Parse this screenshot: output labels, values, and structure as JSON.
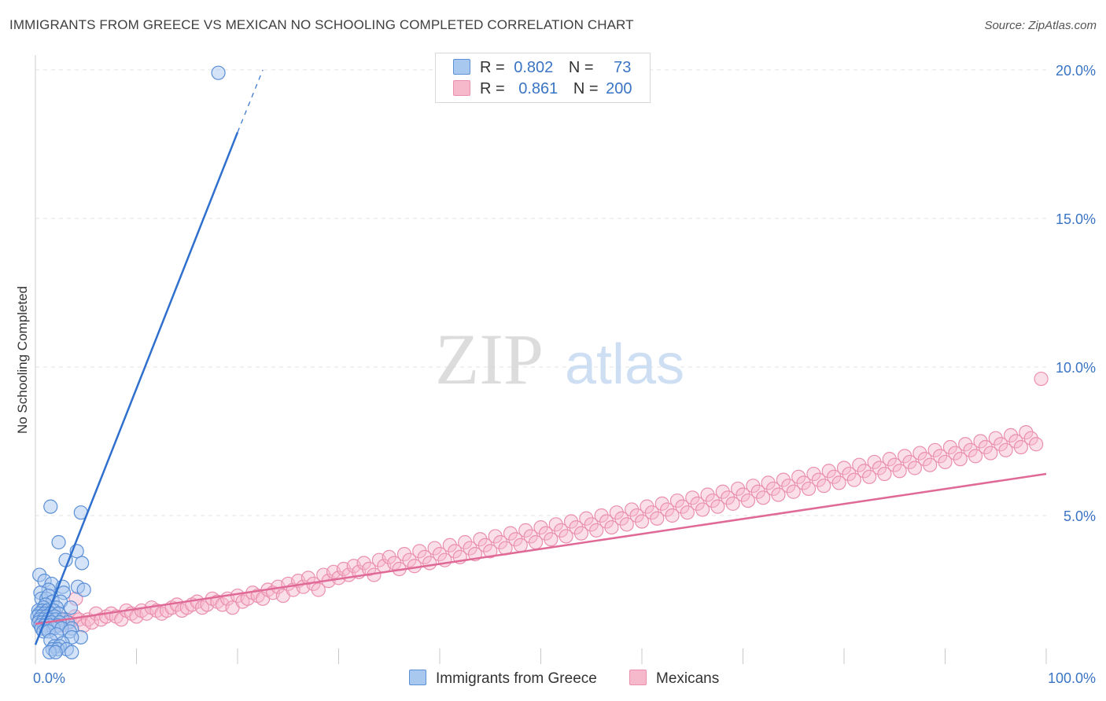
{
  "header": {
    "title": "IMMIGRANTS FROM GREECE VS MEXICAN NO SCHOOLING COMPLETED CORRELATION CHART",
    "source": "Source: ZipAtlas.com"
  },
  "legend": {
    "rows": [
      {
        "r_label": "R =",
        "r_value": "0.802",
        "n_label": "N =",
        "n_value": "73"
      },
      {
        "r_label": "R =",
        "r_value": "0.861",
        "n_label": "N =",
        "n_value": "200"
      }
    ]
  },
  "bottom_legend": {
    "greece": "Immigrants from Greece",
    "mexicans": "Mexicans"
  },
  "watermark": {
    "zip": "ZIP",
    "atlas": "atlas"
  },
  "colors": {
    "greece_fill": "#a9c8f0",
    "greece_stroke": "#5b8fd6",
    "greece_line": "#2f6fcd",
    "mexicans_fill": "#f6b9cc",
    "mexicans_stroke": "#ea8fad",
    "mexicans_line": "#e06a96",
    "grid": "#e3e3e3",
    "tick_text": "#3a74c4"
  },
  "chart_data": {
    "type": "scatter",
    "title": "IMMIGRANTS FROM GREECE VS MEXICAN NO SCHOOLING COMPLETED CORRELATION CHART",
    "xlabel": "",
    "ylabel": "No Schooling Completed",
    "xlim": [
      0,
      100
    ],
    "ylim": [
      0,
      20.5
    ],
    "x_tick_labels": [
      "0.0%",
      "100.0%"
    ],
    "y_ticks": [
      5,
      10,
      15,
      20
    ],
    "y_tick_labels": [
      "5.0%",
      "10.0%",
      "15.0%",
      "20.0%"
    ],
    "grid": true,
    "legend_position": "top-center",
    "series": [
      {
        "name": "Immigrants from Greece",
        "r": 0.802,
        "n": 73,
        "trend": {
          "x0": 0,
          "y0": 0.65,
          "x1": 20,
          "y1": 17.9,
          "dash_to_x": 22.5,
          "dash_to_y": 20.0
        },
        "points": [
          [
            18.1,
            19.9
          ],
          [
            1.5,
            5.3
          ],
          [
            4.5,
            5.1
          ],
          [
            2.3,
            4.1
          ],
          [
            4.1,
            3.8
          ],
          [
            3.0,
            3.5
          ],
          [
            4.6,
            3.4
          ],
          [
            0.4,
            3.0
          ],
          [
            0.9,
            2.8
          ],
          [
            1.6,
            2.7
          ],
          [
            4.2,
            2.6
          ],
          [
            2.7,
            2.6
          ],
          [
            1.3,
            2.5
          ],
          [
            0.5,
            2.4
          ],
          [
            2.8,
            2.4
          ],
          [
            4.8,
            2.5
          ],
          [
            0.6,
            2.2
          ],
          [
            1.1,
            2.2
          ],
          [
            1.3,
            2.3
          ],
          [
            1.7,
            2.1
          ],
          [
            2.5,
            2.1
          ],
          [
            1.0,
            2.0
          ],
          [
            0.8,
            1.9
          ],
          [
            2.1,
            1.9
          ],
          [
            0.3,
            1.8
          ],
          [
            0.7,
            1.8
          ],
          [
            1.2,
            1.8
          ],
          [
            1.8,
            1.8
          ],
          [
            3.5,
            1.9
          ],
          [
            0.4,
            1.7
          ],
          [
            0.9,
            1.7
          ],
          [
            1.5,
            1.7
          ],
          [
            2.3,
            1.7
          ],
          [
            0.2,
            1.6
          ],
          [
            0.6,
            1.6
          ],
          [
            1.1,
            1.6
          ],
          [
            1.9,
            1.6
          ],
          [
            0.4,
            1.5
          ],
          [
            0.8,
            1.5
          ],
          [
            1.3,
            1.5
          ],
          [
            2.0,
            1.5
          ],
          [
            2.7,
            1.5
          ],
          [
            3.2,
            1.4
          ],
          [
            0.3,
            1.4
          ],
          [
            0.7,
            1.4
          ],
          [
            1.1,
            1.4
          ],
          [
            1.6,
            1.4
          ],
          [
            2.4,
            1.4
          ],
          [
            0.5,
            1.3
          ],
          [
            0.9,
            1.3
          ],
          [
            1.4,
            1.3
          ],
          [
            2.2,
            1.3
          ],
          [
            3.6,
            1.2
          ],
          [
            0.6,
            1.2
          ],
          [
            1.1,
            1.2
          ],
          [
            1.8,
            1.2
          ],
          [
            2.6,
            1.2
          ],
          [
            3.4,
            1.1
          ],
          [
            0.8,
            1.1
          ],
          [
            1.3,
            1.1
          ],
          [
            2.1,
            1.0
          ],
          [
            4.5,
            0.9
          ],
          [
            3.6,
            0.9
          ],
          [
            1.5,
            0.8
          ],
          [
            2.7,
            0.7
          ],
          [
            1.9,
            0.6
          ],
          [
            2.4,
            0.6
          ],
          [
            1.7,
            0.5
          ],
          [
            2.2,
            0.5
          ],
          [
            3.1,
            0.5
          ],
          [
            1.4,
            0.4
          ],
          [
            2.0,
            0.4
          ],
          [
            3.6,
            0.4
          ]
        ]
      },
      {
        "name": "Mexicans",
        "r": 0.861,
        "n": 200,
        "trend": {
          "x0": 0,
          "y0": 1.35,
          "x1": 100,
          "y1": 6.4
        },
        "points": [
          [
            0.5,
            1.5
          ],
          [
            1.2,
            1.4
          ],
          [
            1.8,
            1.2
          ],
          [
            2.2,
            1.6
          ],
          [
            2.6,
            1.3
          ],
          [
            3.0,
            1.5
          ],
          [
            3.4,
            1.4
          ],
          [
            3.9,
            1.6
          ],
          [
            4.3,
            1.5
          ],
          [
            4.8,
            1.3
          ],
          [
            5.2,
            1.5
          ],
          [
            5.6,
            1.4
          ],
          [
            4.0,
            2.2
          ],
          [
            6.0,
            1.7
          ],
          [
            6.5,
            1.5
          ],
          [
            7.0,
            1.6
          ],
          [
            7.5,
            1.7
          ],
          [
            8.0,
            1.6
          ],
          [
            8.5,
            1.5
          ],
          [
            9.0,
            1.8
          ],
          [
            9.5,
            1.7
          ],
          [
            10.0,
            1.6
          ],
          [
            10.5,
            1.8
          ],
          [
            11.0,
            1.7
          ],
          [
            11.5,
            1.9
          ],
          [
            12.0,
            1.8
          ],
          [
            12.5,
            1.7
          ],
          [
            13.0,
            1.8
          ],
          [
            13.5,
            1.9
          ],
          [
            14.0,
            2.0
          ],
          [
            14.5,
            1.8
          ],
          [
            15.0,
            1.9
          ],
          [
            15.5,
            2.0
          ],
          [
            16.0,
            2.1
          ],
          [
            16.5,
            1.9
          ],
          [
            17.0,
            2.0
          ],
          [
            17.5,
            2.2
          ],
          [
            18.0,
            2.1
          ],
          [
            18.5,
            2.0
          ],
          [
            19.0,
            2.2
          ],
          [
            19.5,
            1.9
          ],
          [
            20.0,
            2.3
          ],
          [
            20.5,
            2.1
          ],
          [
            21.0,
            2.2
          ],
          [
            21.5,
            2.4
          ],
          [
            22.0,
            2.3
          ],
          [
            22.5,
            2.2
          ],
          [
            23.0,
            2.5
          ],
          [
            23.5,
            2.4
          ],
          [
            24.0,
            2.6
          ],
          [
            24.5,
            2.3
          ],
          [
            25.0,
            2.7
          ],
          [
            25.5,
            2.5
          ],
          [
            26.0,
            2.8
          ],
          [
            26.5,
            2.6
          ],
          [
            27.0,
            2.9
          ],
          [
            27.5,
            2.7
          ],
          [
            28.0,
            2.5
          ],
          [
            28.5,
            3.0
          ],
          [
            29.0,
            2.8
          ],
          [
            29.5,
            3.1
          ],
          [
            30.0,
            2.9
          ],
          [
            30.5,
            3.2
          ],
          [
            31.0,
            3.0
          ],
          [
            31.5,
            3.3
          ],
          [
            32.0,
            3.1
          ],
          [
            32.5,
            3.4
          ],
          [
            33.0,
            3.2
          ],
          [
            33.5,
            3.0
          ],
          [
            34.0,
            3.5
          ],
          [
            34.5,
            3.3
          ],
          [
            35.0,
            3.6
          ],
          [
            35.5,
            3.4
          ],
          [
            36.0,
            3.2
          ],
          [
            36.5,
            3.7
          ],
          [
            37.0,
            3.5
          ],
          [
            37.5,
            3.3
          ],
          [
            38.0,
            3.8
          ],
          [
            38.5,
            3.6
          ],
          [
            39.0,
            3.4
          ],
          [
            39.5,
            3.9
          ],
          [
            40.0,
            3.7
          ],
          [
            40.5,
            3.5
          ],
          [
            41.0,
            4.0
          ],
          [
            41.5,
            3.8
          ],
          [
            42.0,
            3.6
          ],
          [
            42.5,
            4.1
          ],
          [
            43.0,
            3.9
          ],
          [
            43.5,
            3.7
          ],
          [
            44.0,
            4.2
          ],
          [
            44.5,
            4.0
          ],
          [
            45.0,
            3.8
          ],
          [
            45.5,
            4.3
          ],
          [
            46.0,
            4.1
          ],
          [
            46.5,
            3.9
          ],
          [
            47.0,
            4.4
          ],
          [
            47.5,
            4.2
          ],
          [
            48.0,
            4.0
          ],
          [
            48.5,
            4.5
          ],
          [
            49.0,
            4.3
          ],
          [
            49.5,
            4.1
          ],
          [
            50.0,
            4.6
          ],
          [
            50.5,
            4.4
          ],
          [
            51.0,
            4.2
          ],
          [
            51.5,
            4.7
          ],
          [
            52.0,
            4.5
          ],
          [
            52.5,
            4.3
          ],
          [
            53.0,
            4.8
          ],
          [
            53.5,
            4.6
          ],
          [
            54.0,
            4.4
          ],
          [
            54.5,
            4.9
          ],
          [
            55.0,
            4.7
          ],
          [
            55.5,
            4.5
          ],
          [
            56.0,
            5.0
          ],
          [
            56.5,
            4.8
          ],
          [
            57.0,
            4.6
          ],
          [
            57.5,
            5.1
          ],
          [
            58.0,
            4.9
          ],
          [
            58.5,
            4.7
          ],
          [
            59.0,
            5.2
          ],
          [
            59.5,
            5.0
          ],
          [
            60.0,
            4.8
          ],
          [
            60.5,
            5.3
          ],
          [
            61.0,
            5.1
          ],
          [
            61.5,
            4.9
          ],
          [
            62.0,
            5.4
          ],
          [
            62.5,
            5.2
          ],
          [
            63.0,
            5.0
          ],
          [
            63.5,
            5.5
          ],
          [
            64.0,
            5.3
          ],
          [
            64.5,
            5.1
          ],
          [
            65.0,
            5.6
          ],
          [
            65.5,
            5.4
          ],
          [
            66.0,
            5.2
          ],
          [
            66.5,
            5.7
          ],
          [
            67.0,
            5.5
          ],
          [
            67.5,
            5.3
          ],
          [
            68.0,
            5.8
          ],
          [
            68.5,
            5.6
          ],
          [
            69.0,
            5.4
          ],
          [
            69.5,
            5.9
          ],
          [
            70.0,
            5.7
          ],
          [
            70.5,
            5.5
          ],
          [
            71.0,
            6.0
          ],
          [
            71.5,
            5.8
          ],
          [
            72.0,
            5.6
          ],
          [
            72.5,
            6.1
          ],
          [
            73.0,
            5.9
          ],
          [
            73.5,
            5.7
          ],
          [
            74.0,
            6.2
          ],
          [
            74.5,
            6.0
          ],
          [
            75.0,
            5.8
          ],
          [
            75.5,
            6.3
          ],
          [
            76.0,
            6.1
          ],
          [
            76.5,
            5.9
          ],
          [
            77.0,
            6.4
          ],
          [
            77.5,
            6.2
          ],
          [
            78.0,
            6.0
          ],
          [
            78.5,
            6.5
          ],
          [
            79.0,
            6.3
          ],
          [
            79.5,
            6.1
          ],
          [
            80.0,
            6.6
          ],
          [
            80.5,
            6.4
          ],
          [
            81.0,
            6.2
          ],
          [
            81.5,
            6.7
          ],
          [
            82.0,
            6.5
          ],
          [
            82.5,
            6.3
          ],
          [
            83.0,
            6.8
          ],
          [
            83.5,
            6.6
          ],
          [
            84.0,
            6.4
          ],
          [
            84.5,
            6.9
          ],
          [
            85.0,
            6.7
          ],
          [
            85.5,
            6.5
          ],
          [
            86.0,
            7.0
          ],
          [
            86.5,
            6.8
          ],
          [
            87.0,
            6.6
          ],
          [
            87.5,
            7.1
          ],
          [
            88.0,
            6.9
          ],
          [
            88.5,
            6.7
          ],
          [
            89.0,
            7.2
          ],
          [
            89.5,
            7.0
          ],
          [
            90.0,
            6.8
          ],
          [
            90.5,
            7.3
          ],
          [
            91.0,
            7.1
          ],
          [
            91.5,
            6.9
          ],
          [
            92.0,
            7.4
          ],
          [
            92.5,
            7.2
          ],
          [
            93.0,
            7.0
          ],
          [
            93.5,
            7.5
          ],
          [
            94.0,
            7.3
          ],
          [
            94.5,
            7.1
          ],
          [
            95.0,
            7.6
          ],
          [
            95.5,
            7.4
          ],
          [
            96.0,
            7.2
          ],
          [
            96.5,
            7.7
          ],
          [
            97.0,
            7.5
          ],
          [
            97.5,
            7.3
          ],
          [
            98.0,
            7.8
          ],
          [
            98.5,
            7.6
          ],
          [
            99.0,
            7.4
          ],
          [
            99.5,
            9.6
          ]
        ]
      }
    ]
  }
}
